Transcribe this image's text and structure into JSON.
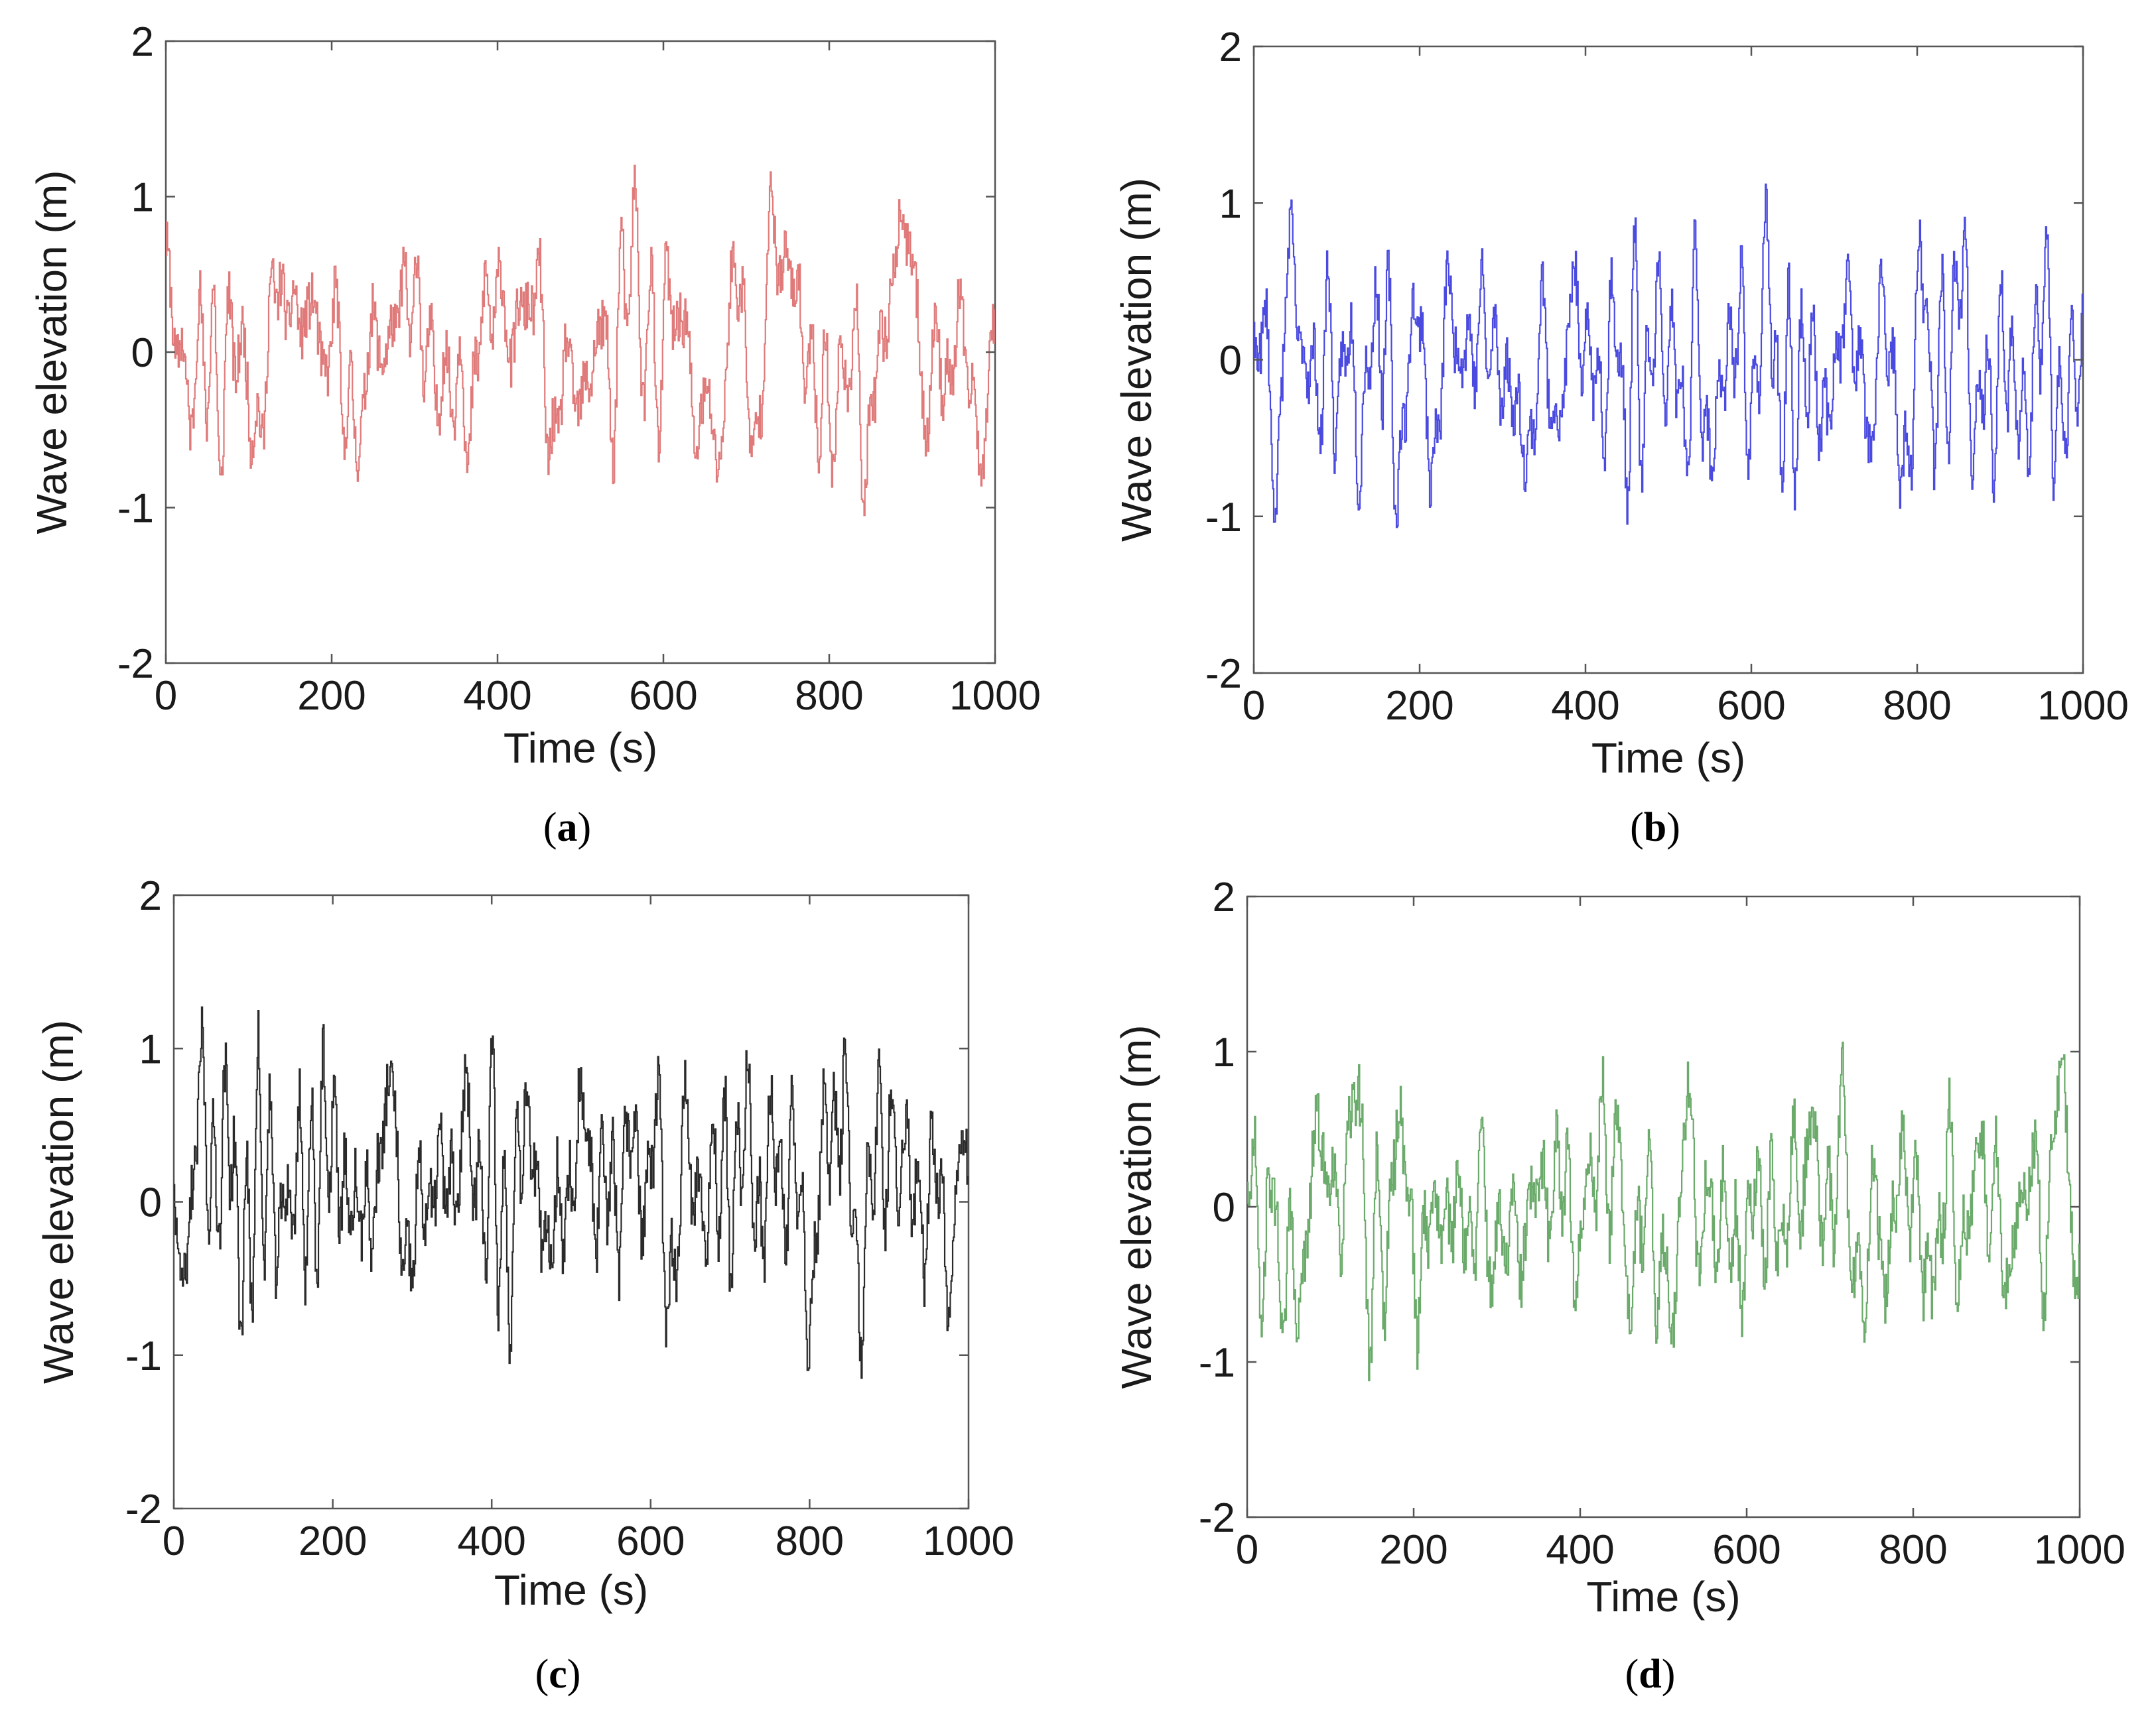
{
  "chart_data": [
    {
      "type": "line",
      "panel": "a",
      "caption_open": "(",
      "caption_letter": "a",
      "caption_close": ")",
      "xlabel": "Time (s)",
      "ylabel": "Wave elevation (m)",
      "xlim": [
        0,
        1000
      ],
      "ylim": [
        -2,
        2
      ],
      "xticks": [
        0,
        200,
        400,
        600,
        800,
        1000
      ],
      "yticks": [
        -2,
        -1,
        0,
        1,
        2
      ],
      "xtick_labels": [
        "0",
        "200",
        "400",
        "600",
        "800",
        "1000"
      ],
      "ytick_labels": [
        "-2",
        "-1",
        "0",
        "1",
        "2"
      ],
      "color": "#e07a7a",
      "series": [
        {
          "name": "Wave elevation",
          "seed": 11,
          "samples": 1000,
          "dt": 1,
          "min": -1.05,
          "max": 1.2
        }
      ]
    },
    {
      "type": "line",
      "panel": "b",
      "caption_open": "(",
      "caption_letter": "b",
      "caption_close": ")",
      "xlabel": "Time (s)",
      "ylabel": "Wave elevation (m)",
      "xlim": [
        0,
        1000
      ],
      "ylim": [
        -2,
        2
      ],
      "xticks": [
        0,
        200,
        400,
        600,
        800,
        1000
      ],
      "yticks": [
        -2,
        -1,
        0,
        1,
        2
      ],
      "xtick_labels": [
        "0",
        "200",
        "400",
        "600",
        "800",
        "1000"
      ],
      "ytick_labels": [
        "-2",
        "-1",
        "0",
        "1",
        "2"
      ],
      "color": "#4a4ae0",
      "series": [
        {
          "name": "Wave elevation",
          "seed": 23,
          "samples": 1000,
          "dt": 1,
          "min": -1.07,
          "max": 1.12
        }
      ]
    },
    {
      "type": "line",
      "panel": "c",
      "caption_open": "(",
      "caption_letter": "c",
      "caption_close": ")",
      "xlabel": "Time (s)",
      "ylabel": "Wave elevation (m)",
      "xlim": [
        0,
        1000
      ],
      "ylim": [
        -2,
        2
      ],
      "xticks": [
        0,
        200,
        400,
        600,
        800,
        1000
      ],
      "yticks": [
        -2,
        -1,
        0,
        1,
        2
      ],
      "xtick_labels": [
        "0",
        "200",
        "400",
        "600",
        "800",
        "1000"
      ],
      "ytick_labels": [
        "-2",
        "-1",
        "0",
        "1",
        "2"
      ],
      "color": "#2a2a2a",
      "series": [
        {
          "name": "Wave elevation",
          "seed": 37,
          "samples": 1000,
          "dt": 1,
          "min": -1.15,
          "max": 1.27
        }
      ]
    },
    {
      "type": "line",
      "panel": "d",
      "caption_open": "(",
      "caption_letter": "d",
      "caption_close": ")",
      "xlabel": "Time (s)",
      "ylabel": "Wave elevation (m)",
      "xlim": [
        0,
        1000
      ],
      "ylim": [
        -2,
        2
      ],
      "xticks": [
        0,
        200,
        400,
        600,
        800,
        1000
      ],
      "yticks": [
        -2,
        -1,
        0,
        1,
        2
      ],
      "xtick_labels": [
        "0",
        "200",
        "400",
        "600",
        "800",
        "1000"
      ],
      "ytick_labels": [
        "-2",
        "-1",
        "0",
        "1",
        "2"
      ],
      "color": "#6aaa6a",
      "series": [
        {
          "name": "Wave elevation",
          "seed": 53,
          "samples": 1000,
          "dt": 1,
          "min": -1.12,
          "max": 1.06
        }
      ]
    }
  ]
}
